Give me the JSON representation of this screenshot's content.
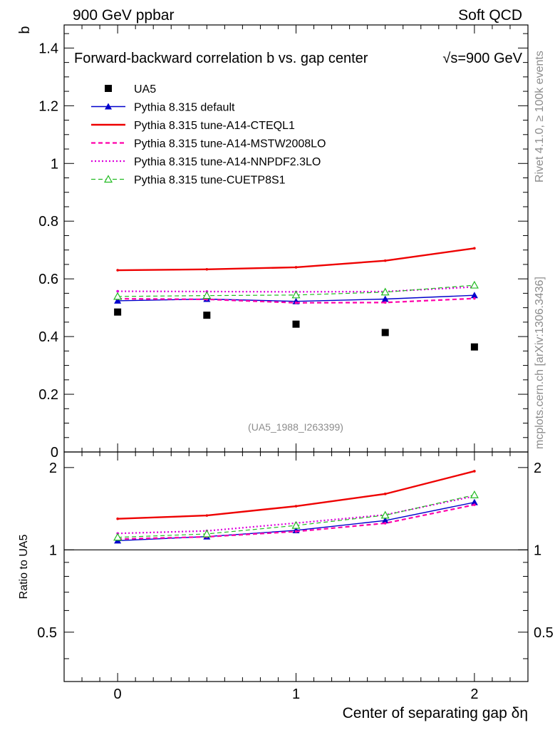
{
  "header": {
    "left": "900 GeV ppbar",
    "right": "Soft QCD",
    "title": "Forward-backward correlation b  vs. gap center",
    "sqrt_s_label": "√s=900 GeV",
    "side_rivet": "Rivet 4.1.0, ≥ 100k events",
    "side_mcplots": "mcplots.cern.ch [arXiv:1306.3436]",
    "ref_tag": "(UA5_1988_I263399)"
  },
  "chart_data": {
    "type": "line",
    "title": "Forward-backward correlation b  vs. gap center √s=900 GeV",
    "xlabel": "Center of separating gap δη",
    "ylabel": "b",
    "ratio_ylabel": "Ratio to UA5",
    "xlim": [
      -0.3,
      2.3
    ],
    "ylim": [
      0,
      1.48
    ],
    "ratio_ylim": [
      0.33,
      2.28
    ],
    "x": [
      0,
      0.5,
      1,
      1.5,
      2
    ],
    "x_ticks": [
      "0",
      "1",
      "2"
    ],
    "y_ticks": [
      "0",
      "0.2",
      "0.4",
      "0.6",
      "0.8",
      "1",
      "1.2",
      "1.4"
    ],
    "ratio_ticks": [
      "0.5",
      "1",
      "2"
    ],
    "series": [
      {
        "name": "UA5",
        "style": "data",
        "color": "#000000",
        "values": [
          0.485,
          0.474,
          0.443,
          0.414,
          0.364
        ]
      },
      {
        "name": "Pythia 8.315 default",
        "style": "solid",
        "marker": "filled-triangle",
        "color": "#0000cc",
        "values": [
          0.524,
          0.53,
          0.522,
          0.53,
          0.543
        ]
      },
      {
        "name": "Pythia 8.315 tune-A14-CTEQL1",
        "style": "solid-thick",
        "color": "#ee0000",
        "values": [
          0.63,
          0.633,
          0.64,
          0.663,
          0.706
        ]
      },
      {
        "name": "Pythia 8.315 tune-A14-MSTW2008LO",
        "style": "dashed",
        "color": "#ff00aa",
        "values": [
          0.531,
          0.529,
          0.517,
          0.518,
          0.532
        ]
      },
      {
        "name": "Pythia 8.315 tune-A14-NNPDF2.3LO",
        "style": "dotted",
        "color": "#dd00dd",
        "values": [
          0.557,
          0.556,
          0.555,
          0.556,
          0.572
        ]
      },
      {
        "name": "Pythia 8.315 tune-CUETP8S1",
        "style": "dashed-thin",
        "marker": "open-triangle",
        "color": "#22bb22",
        "values": [
          0.539,
          0.542,
          0.544,
          0.554,
          0.578
        ]
      }
    ]
  }
}
